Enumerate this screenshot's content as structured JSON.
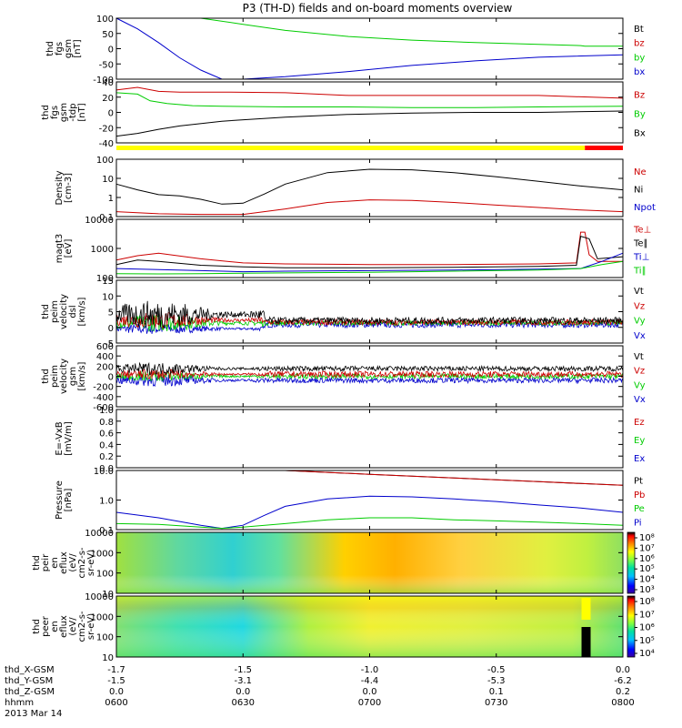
{
  "chart_data": {
    "type": "line",
    "title": "P3 (TH-D) fields and on-board moments overview",
    "time_ticks": [
      "0600",
      "0630",
      "0700",
      "0730",
      "0800"
    ],
    "x_range": [
      0,
      120
    ],
    "footer": {
      "rows": [
        {
          "label": "thd_X-GSM",
          "values": [
            "-1.7",
            "-1.5",
            "-1.0",
            "-0.5",
            "0.0"
          ]
        },
        {
          "label": "thd_Y-GSM",
          "values": [
            "-1.5",
            "-3.1",
            "-4.4",
            "-5.3",
            "-6.2"
          ]
        },
        {
          "label": "thd_Z-GSM",
          "values": [
            "0.0",
            "0.0",
            "0.0",
            "0.1",
            "0.2"
          ]
        },
        {
          "label": "hhmm",
          "values": [
            "0600",
            "0630",
            "0700",
            "0730",
            "0800"
          ]
        }
      ],
      "date": "2013 Mar 14"
    },
    "mode_bar": {
      "switch_minute": 111,
      "color_before": "#ffff00",
      "color_after": "#ff0000"
    },
    "panels": [
      {
        "id": "fgs_gse",
        "ylabel": [
          "thd",
          "fgs",
          "gsm",
          "[nT]"
        ],
        "yticks": [
          "100",
          "50",
          "0",
          "-50",
          "-100"
        ],
        "ylim": [
          -100,
          100
        ],
        "legend": [
          {
            "name": "Bt",
            "color": "#000000"
          },
          {
            "name": "bz",
            "color": "#cc0000"
          },
          {
            "name": "by",
            "color": "#00cc00"
          },
          {
            "name": "bx",
            "color": "#0000cc"
          }
        ],
        "series": [
          {
            "name": "by",
            "color": "#00cc00",
            "x": [
              20,
              30,
              40,
              55,
              70,
              85,
              100,
              110,
              111,
              120
            ],
            "y": [
              100,
              80,
              60,
              40,
              28,
              20,
              14,
              10,
              8,
              8
            ]
          },
          {
            "name": "bx",
            "color": "#0000cc",
            "x": [
              0,
              5,
              10,
              15,
              20,
              25,
              30,
              40,
              55,
              70,
              85,
              100,
              120
            ],
            "y": [
              100,
              65,
              20,
              -30,
              -70,
              -100,
              -100,
              -92,
              -75,
              -55,
              -40,
              -28,
              -20
            ]
          }
        ]
      },
      {
        "id": "fgs_dsl",
        "ylabel": [
          "thd",
          "fgs",
          "gsm",
          "-tdp",
          "[nT]"
        ],
        "yticks": [
          "40",
          "20",
          "0",
          "-20",
          "-40"
        ],
        "ylim": [
          -50,
          40
        ],
        "legend": [
          {
            "name": "Bz",
            "color": "#cc0000"
          },
          {
            "name": "By",
            "color": "#00cc00"
          },
          {
            "name": "Bx",
            "color": "#000000"
          }
        ],
        "series": [
          {
            "name": "Bz",
            "color": "#cc0000",
            "x": [
              0,
              5,
              10,
              15,
              25,
              40,
              55,
              70,
              85,
              100,
              120
            ],
            "y": [
              28,
              32,
              26,
              25,
              25,
              24,
              20,
              20,
              20,
              20,
              16
            ]
          },
          {
            "name": "By",
            "color": "#00cc00",
            "x": [
              0,
              5,
              8,
              12,
              18,
              25,
              40,
              55,
              70,
              85,
              100,
              120
            ],
            "y": [
              24,
              22,
              12,
              8,
              5,
              4,
              3,
              3,
              2,
              2,
              3,
              4
            ]
          },
          {
            "name": "Bx",
            "color": "#000000",
            "x": [
              0,
              5,
              10,
              15,
              25,
              40,
              55,
              70,
              85,
              100,
              120
            ],
            "y": [
              -40,
              -36,
              -30,
              -25,
              -18,
              -12,
              -8,
              -6,
              -5,
              -5,
              -3
            ]
          }
        ]
      },
      {
        "id": "density",
        "ylabel": [
          "Density",
          "[cm-3]"
        ],
        "yticks": [
          "100",
          "10",
          "1",
          "0.1"
        ],
        "ylim_log": [
          -1,
          2
        ],
        "legend": [
          {
            "name": "Ne",
            "color": "#cc0000"
          },
          {
            "name": "Ni",
            "color": "#000000"
          },
          {
            "name": "Npot",
            "color": "#0000cc"
          }
        ],
        "series": [
          {
            "name": "Ni",
            "color": "#000000",
            "x": [
              0,
              5,
              10,
              15,
              20,
              25,
              30,
              35,
              40,
              50,
              60,
              70,
              80,
              90,
              100,
              110,
              120
            ],
            "y": [
              5,
              2.5,
              1.4,
              1.2,
              0.8,
              0.45,
              0.5,
              1.5,
              5,
              20,
              30,
              28,
              20,
              12,
              7,
              4,
              2.5
            ]
          },
          {
            "name": "Ne",
            "color": "#cc0000",
            "x": [
              0,
              10,
              20,
              30,
              40,
              50,
              60,
              70,
              80,
              90,
              100,
              110,
              120
            ],
            "y": [
              0.18,
              0.14,
              0.13,
              0.13,
              0.25,
              0.55,
              0.75,
              0.7,
              0.55,
              0.4,
              0.3,
              0.22,
              0.18
            ]
          }
        ]
      },
      {
        "id": "temperature",
        "ylabel": [
          "magt3",
          "[eV]"
        ],
        "yticks": [
          "10000",
          "1000",
          "100"
        ],
        "ylim_log": [
          2.2,
          4
        ],
        "legend": [
          {
            "name": "Te⊥",
            "color": "#cc0000"
          },
          {
            "name": "Te∥",
            "color": "#000000"
          },
          {
            "name": "Ti⊥",
            "color": "#0000cc"
          },
          {
            "name": "Ti∥",
            "color": "#00cc00"
          }
        ],
        "series": [
          {
            "name": "Te⊥",
            "color": "#cc0000",
            "x": [
              0,
              5,
              10,
              20,
              30,
              40,
              60,
              80,
              100,
              109,
              110,
              111,
              112,
              114,
              120
            ],
            "y": [
              550,
              750,
              900,
              600,
              450,
              420,
              400,
              400,
              420,
              450,
              4000,
              4000,
              800,
              500,
              500
            ]
          },
          {
            "name": "Te∥",
            "color": "#000000",
            "x": [
              0,
              5,
              10,
              20,
              30,
              40,
              60,
              80,
              100,
              109,
              110,
              112,
              114,
              120
            ],
            "y": [
              400,
              550,
              500,
              380,
              340,
              320,
              320,
              330,
              350,
              380,
              3000,
              2500,
              600,
              700
            ]
          },
          {
            "name": "Ti⊥",
            "color": "#0000cc",
            "x": [
              0,
              10,
              20,
              30,
              40,
              60,
              80,
              100,
              110,
              115,
              120
            ],
            "y": [
              300,
              280,
              260,
              240,
              250,
              260,
              270,
              290,
              300,
              500,
              900
            ]
          },
          {
            "name": "Ti∥",
            "color": "#00cc00",
            "x": [
              0,
              10,
              20,
              30,
              40,
              60,
              80,
              100,
              110,
              115,
              120
            ],
            "y": [
              210,
              205,
              210,
              215,
              220,
              230,
              250,
              270,
              300,
              400,
              500
            ]
          }
        ]
      },
      {
        "id": "velocity_dsl",
        "ylabel": [
          "thd",
          "peim",
          "velocity",
          "dsl",
          "[km/s]"
        ],
        "yticks": [
          "15",
          "10",
          "5",
          "0",
          "-5"
        ],
        "ylim": [
          -7,
          15
        ],
        "legend": [
          {
            "name": "Vt",
            "color": "#000000"
          },
          {
            "name": "Vz",
            "color": "#cc0000"
          },
          {
            "name": "Vy",
            "color": "#00cc00"
          },
          {
            "name": "Vx",
            "color": "#0000cc"
          }
        ],
        "noisy": true
      },
      {
        "id": "velocity_gsm",
        "ylabel": [
          "thd",
          "peim",
          "velocity",
          "gsm",
          "[km/s]"
        ],
        "yticks": [
          "600",
          "400",
          "200",
          "0",
          "-200",
          "-400",
          "-600"
        ],
        "ylim": [
          -600,
          600
        ],
        "legend": [
          {
            "name": "Vt",
            "color": "#000000"
          },
          {
            "name": "Vz",
            "color": "#cc0000"
          },
          {
            "name": "Vy",
            "color": "#00cc00"
          },
          {
            "name": "Vx",
            "color": "#0000cc"
          }
        ],
        "noisy": true
      },
      {
        "id": "efield",
        "ylabel": [
          "E=-VxB",
          "[mV/m]"
        ],
        "yticks": [
          "1.0",
          "0.8",
          "0.6",
          "0.4",
          "0.2",
          "0.0"
        ],
        "ylim": [
          0,
          1
        ],
        "legend": [
          {
            "name": "Ez",
            "color": "#cc0000"
          },
          {
            "name": "Ey",
            "color": "#00cc00"
          },
          {
            "name": "Ex",
            "color": "#0000cc"
          }
        ]
      },
      {
        "id": "pressure",
        "ylabel": [
          "Pressure",
          "[nPa]"
        ],
        "yticks": [
          "10.0",
          "1.0",
          "0.1"
        ],
        "ylim_log": [
          -1.4,
          1
        ],
        "legend": [
          {
            "name": "Pt",
            "color": "#000000"
          },
          {
            "name": "Pb",
            "color": "#cc0000"
          },
          {
            "name": "Pe",
            "color": "#00cc00"
          },
          {
            "name": "Pi",
            "color": "#0000cc"
          }
        ],
        "series": [
          {
            "name": "Pt",
            "color": "#000000",
            "x": [
              40,
              60,
              80,
              100,
              120
            ],
            "y": [
              10,
              7,
              5,
              3.5,
              2.5
            ]
          },
          {
            "name": "Pi",
            "color": "#0000cc",
            "x": [
              0,
              10,
              20,
              25,
              30,
              35,
              40,
              50,
              60,
              70,
              80,
              90,
              100,
              110,
              120
            ],
            "y": [
              0.2,
              0.12,
              0.06,
              0.045,
              0.06,
              0.15,
              0.35,
              0.7,
              0.9,
              0.85,
              0.7,
              0.55,
              0.4,
              0.3,
              0.2
            ]
          },
          {
            "name": "Pe",
            "color": "#00cc00",
            "x": [
              0,
              10,
              20,
              25,
              30,
              40,
              50,
              60,
              70,
              80,
              90,
              100,
              110,
              120
            ],
            "y": [
              0.07,
              0.065,
              0.05,
              0.045,
              0.05,
              0.07,
              0.1,
              0.12,
              0.12,
              0.1,
              0.09,
              0.08,
              0.07,
              0.06
            ]
          },
          {
            "name": "Pb",
            "color": "#cc0000",
            "x": [
              40,
              60,
              80,
              100,
              120
            ],
            "y": [
              10,
              7,
              5,
              3.5,
              2.5
            ]
          }
        ]
      },
      {
        "id": "peir_eflux",
        "type": "heatmap",
        "ylabel": [
          "thd",
          "peir",
          "en",
          "eflux",
          "(eV/",
          "cm2-s-",
          "sr-eV)"
        ],
        "yticks": [
          "10000",
          "1000",
          "100",
          "10"
        ],
        "colorbar_ticks": [
          "10⁸",
          "10⁷",
          "10⁶",
          "10⁵",
          "10⁴",
          "10³"
        ]
      },
      {
        "id": "peer_eflux",
        "type": "heatmap",
        "ylabel": [
          "thd",
          "peer",
          "en",
          "eflux",
          "(eV/",
          "cm2-s-",
          "sr-eV)"
        ],
        "yticks": [
          "10000",
          "1000",
          "100",
          "10"
        ],
        "colorbar_ticks": [
          "10⁸",
          "10⁷",
          "10⁶",
          "10⁵",
          "10⁴"
        ]
      }
    ]
  }
}
